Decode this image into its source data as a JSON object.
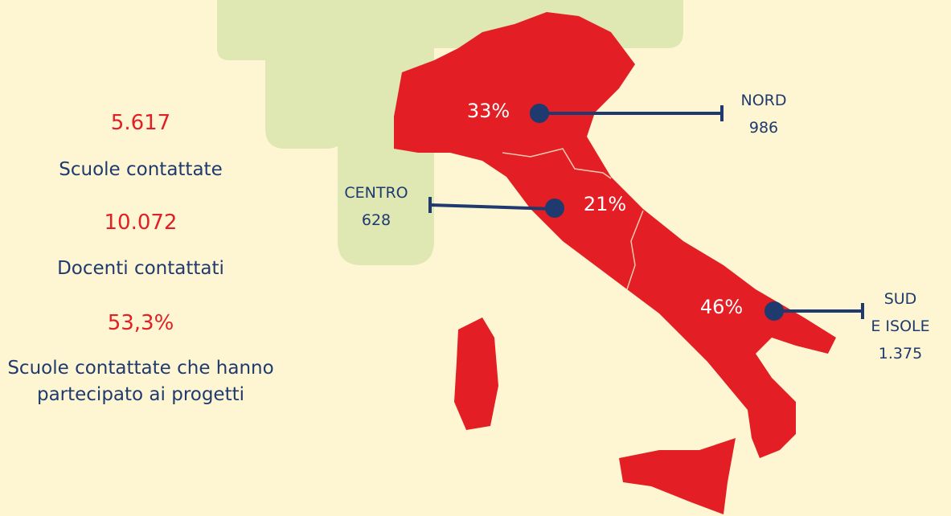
{
  "stats": [
    {
      "value": "5.617",
      "label": "Scuole contattate"
    },
    {
      "value": "10.072",
      "label": "Docenti contattati"
    },
    {
      "value": "53,3%",
      "label": "Scuole contattate che hanno partecipato ai progetti"
    }
  ],
  "regions": [
    {
      "name_lines": [
        "NORD"
      ],
      "count": "986",
      "share": "33%"
    },
    {
      "name_lines": [
        "CENTRO"
      ],
      "count": "628",
      "share": "21%"
    },
    {
      "name_lines": [
        "SUD",
        "E ISOLE"
      ],
      "count": "1.375",
      "share": "46%"
    }
  ]
}
